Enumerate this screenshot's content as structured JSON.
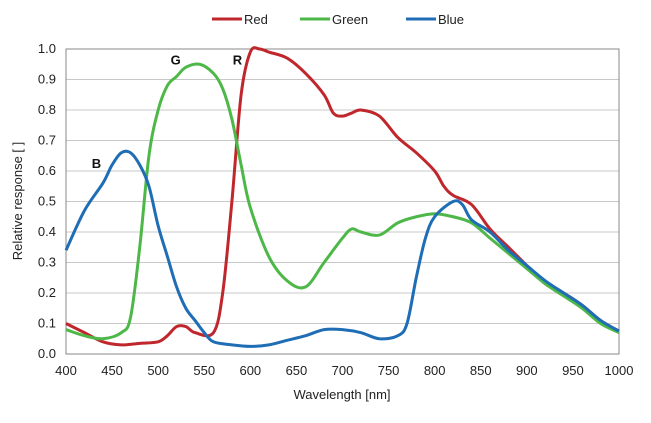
{
  "chart_data": {
    "type": "line",
    "title": "",
    "xlabel": "Wavelength [nm]",
    "ylabel": "Relative response [ ]",
    "xlim": [
      400,
      1000
    ],
    "ylim": [
      0,
      1.0
    ],
    "xticks": [
      400,
      450,
      500,
      550,
      600,
      650,
      700,
      750,
      800,
      850,
      900,
      950,
      1000
    ],
    "yticks": [
      0.0,
      0.1,
      0.2,
      0.3,
      0.4,
      0.5,
      0.6,
      0.7,
      0.8,
      0.9,
      1.0
    ],
    "grid": "horizontal",
    "legend_position": "top-center",
    "series": [
      {
        "name": "Red",
        "color": "#c0272d",
        "x": [
          400,
          420,
          440,
          460,
          480,
          500,
          510,
          520,
          530,
          540,
          560,
          570,
          580,
          590,
          600,
          610,
          620,
          640,
          660,
          680,
          690,
          700,
          710,
          720,
          740,
          760,
          780,
          800,
          810,
          820,
          840,
          860,
          880,
          900,
          920,
          940,
          960,
          980,
          1000
        ],
        "y": [
          0.1,
          0.07,
          0.04,
          0.03,
          0.035,
          0.04,
          0.06,
          0.09,
          0.09,
          0.07,
          0.07,
          0.2,
          0.5,
          0.85,
          0.99,
          1.0,
          0.99,
          0.97,
          0.92,
          0.85,
          0.79,
          0.78,
          0.79,
          0.8,
          0.78,
          0.71,
          0.66,
          0.6,
          0.55,
          0.52,
          0.49,
          0.41,
          0.35,
          0.29,
          0.23,
          0.2,
          0.16,
          0.11,
          0.075
        ]
      },
      {
        "name": "Green",
        "color": "#4db848",
        "x": [
          400,
          420,
          440,
          460,
          470,
          480,
          490,
          500,
          510,
          520,
          530,
          545,
          560,
          570,
          580,
          590,
          600,
          620,
          640,
          660,
          680,
          700,
          710,
          720,
          740,
          760,
          780,
          800,
          820,
          840,
          860,
          880,
          900,
          920,
          940,
          960,
          980,
          1000
        ],
        "y": [
          0.08,
          0.06,
          0.05,
          0.07,
          0.12,
          0.35,
          0.65,
          0.8,
          0.88,
          0.91,
          0.94,
          0.95,
          0.92,
          0.87,
          0.77,
          0.62,
          0.48,
          0.32,
          0.24,
          0.22,
          0.3,
          0.38,
          0.41,
          0.4,
          0.39,
          0.43,
          0.45,
          0.46,
          0.45,
          0.43,
          0.38,
          0.33,
          0.28,
          0.23,
          0.19,
          0.15,
          0.1,
          0.07
        ]
      },
      {
        "name": "Blue",
        "color": "#1f6db5",
        "x": [
          400,
          420,
          440,
          450,
          460,
          470,
          480,
          490,
          500,
          510,
          520,
          530,
          540,
          550,
          560,
          580,
          600,
          620,
          640,
          660,
          680,
          700,
          720,
          740,
          760,
          770,
          780,
          790,
          800,
          820,
          830,
          840,
          860,
          880,
          900,
          920,
          940,
          960,
          980,
          1000
        ],
        "y": [
          0.34,
          0.47,
          0.56,
          0.62,
          0.66,
          0.66,
          0.62,
          0.55,
          0.42,
          0.32,
          0.22,
          0.15,
          0.11,
          0.07,
          0.04,
          0.03,
          0.025,
          0.03,
          0.045,
          0.06,
          0.08,
          0.08,
          0.07,
          0.05,
          0.06,
          0.1,
          0.25,
          0.38,
          0.45,
          0.5,
          0.49,
          0.44,
          0.4,
          0.34,
          0.29,
          0.24,
          0.2,
          0.16,
          0.11,
          0.075
        ]
      }
    ],
    "annotations": [
      {
        "text": "B",
        "x": 433,
        "y": 0.61
      },
      {
        "text": "G",
        "x": 519,
        "y": 0.95
      },
      {
        "text": "R",
        "x": 586,
        "y": 0.95
      }
    ]
  }
}
